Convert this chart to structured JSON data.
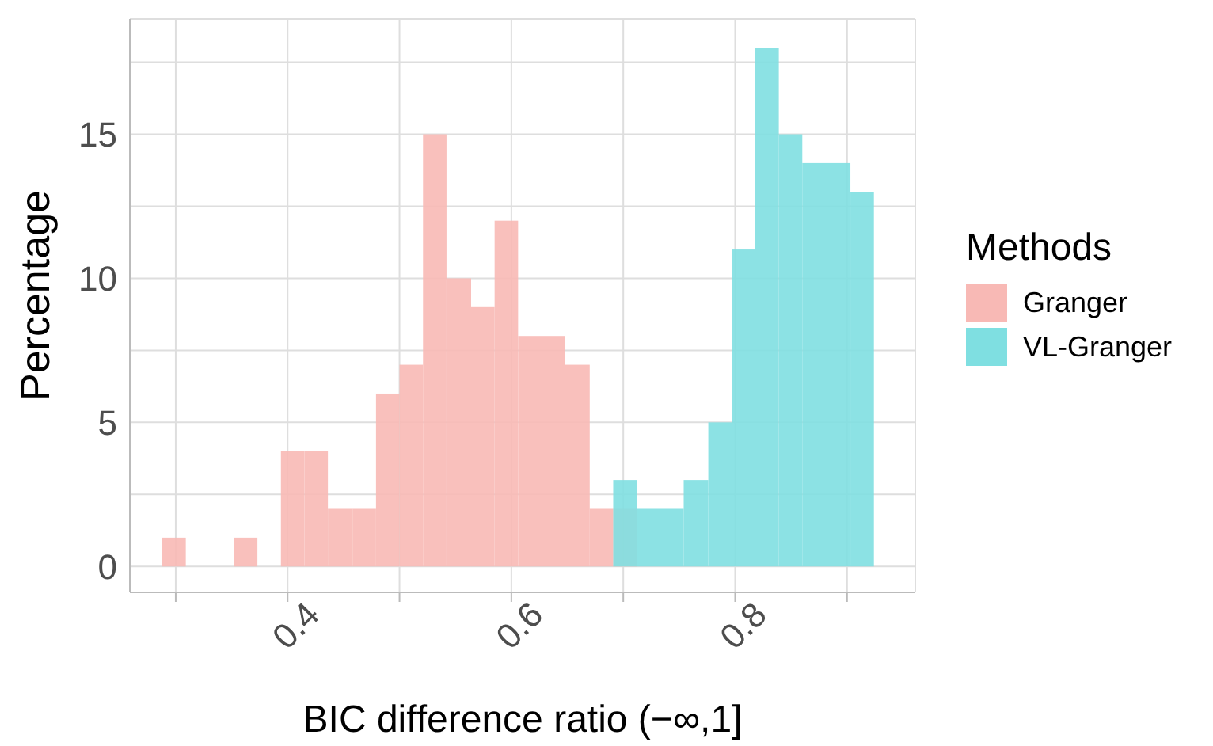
{
  "chart_data": {
    "type": "histogram",
    "xlabel": "BIC difference ratio (−∞,1]",
    "ylabel": "Percentage",
    "legend_title": "Methods",
    "bins": [
      0.288,
      0.309,
      0.352,
      0.373,
      0.394,
      0.415,
      0.436,
      0.458,
      0.479,
      0.5,
      0.521,
      0.542,
      0.564,
      0.585,
      0.606,
      0.627,
      0.648,
      0.67,
      0.691,
      0.712,
      0.733,
      0.754,
      0.776,
      0.797,
      0.818,
      0.839,
      0.86,
      0.882,
      0.903,
      0.924
    ],
    "series": [
      {
        "name": "Granger",
        "color": "#f8b9b5",
        "values": [
          1,
          0,
          1,
          0,
          4,
          4,
          2,
          2,
          6,
          7,
          15,
          10,
          9,
          12,
          8,
          8,
          7,
          2,
          2,
          0,
          0,
          0,
          0,
          0,
          0,
          0,
          0,
          0,
          0
        ]
      },
      {
        "name": "VL-Granger",
        "color": "#7fdfe1",
        "values": [
          0,
          0,
          0,
          0,
          0,
          0,
          0,
          0,
          0,
          0,
          0,
          0,
          0,
          0,
          0,
          0,
          0,
          0,
          3,
          2,
          2,
          3,
          5,
          11,
          18,
          15,
          14,
          14,
          13
        ]
      }
    ],
    "xlim": [
      0.259,
      0.961
    ],
    "xticks": [
      {
        "value": 0.3,
        "label": null
      },
      0.4,
      {
        "value": 0.5,
        "label": null
      },
      0.6,
      {
        "value": 0.7,
        "label": null
      },
      0.8,
      {
        "value": 0.9,
        "label": null
      }
    ],
    "ylim": [
      -0.9,
      19
    ],
    "yticks": [
      0,
      {
        "value": 2.5,
        "label": null
      },
      5,
      {
        "value": 7.5,
        "label": null
      },
      10,
      {
        "value": 12.5,
        "label": null
      },
      15,
      {
        "value": 17.5,
        "label": null
      }
    ],
    "grid": true,
    "legend": "right"
  }
}
